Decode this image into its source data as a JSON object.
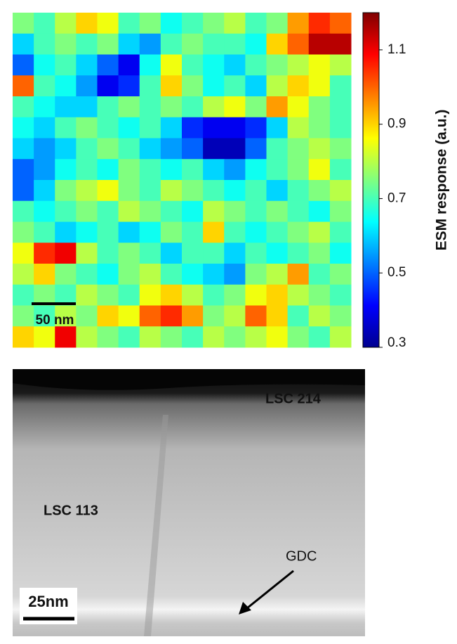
{
  "chart_data": {
    "type": "heatmap",
    "colorbar_label": "ESM  response (a.u.)",
    "scale_bar": "50 nm",
    "clim": [
      0.3,
      1.2
    ],
    "cticks": [
      0.3,
      0.5,
      0.7,
      0.9,
      1.1
    ],
    "colormap": "jet",
    "z": [
      [
        0.75,
        0.7,
        0.8,
        0.9,
        0.85,
        0.7,
        0.75,
        0.65,
        0.7,
        0.75,
        0.8,
        0.7,
        0.75,
        0.95,
        1.05,
        1.0
      ],
      [
        0.6,
        0.7,
        0.75,
        0.7,
        0.75,
        0.6,
        0.55,
        0.7,
        0.75,
        0.7,
        0.7,
        0.65,
        0.9,
        1.0,
        1.15,
        1.15
      ],
      [
        0.5,
        0.65,
        0.7,
        0.6,
        0.5,
        0.4,
        0.65,
        0.85,
        0.7,
        0.65,
        0.6,
        0.7,
        0.75,
        0.8,
        0.85,
        0.8
      ],
      [
        1.0,
        0.7,
        0.65,
        0.55,
        0.4,
        0.45,
        0.7,
        0.9,
        0.75,
        0.65,
        0.7,
        0.6,
        0.8,
        0.9,
        0.85,
        0.7
      ],
      [
        0.7,
        0.65,
        0.6,
        0.6,
        0.7,
        0.75,
        0.7,
        0.75,
        0.7,
        0.8,
        0.85,
        0.75,
        0.95,
        0.85,
        0.75,
        0.7
      ],
      [
        0.65,
        0.6,
        0.7,
        0.75,
        0.7,
        0.65,
        0.7,
        0.6,
        0.45,
        0.4,
        0.4,
        0.45,
        0.6,
        0.8,
        0.75,
        0.7
      ],
      [
        0.6,
        0.55,
        0.6,
        0.7,
        0.75,
        0.7,
        0.6,
        0.55,
        0.5,
        0.35,
        0.35,
        0.5,
        0.7,
        0.75,
        0.8,
        0.75
      ],
      [
        0.5,
        0.55,
        0.65,
        0.7,
        0.65,
        0.75,
        0.7,
        0.65,
        0.7,
        0.6,
        0.55,
        0.65,
        0.7,
        0.75,
        0.85,
        0.7
      ],
      [
        0.5,
        0.6,
        0.75,
        0.8,
        0.85,
        0.75,
        0.7,
        0.8,
        0.75,
        0.7,
        0.65,
        0.7,
        0.6,
        0.7,
        0.75,
        0.8
      ],
      [
        0.7,
        0.65,
        0.7,
        0.75,
        0.7,
        0.8,
        0.75,
        0.7,
        0.65,
        0.8,
        0.75,
        0.7,
        0.75,
        0.7,
        0.65,
        0.75
      ],
      [
        0.75,
        0.7,
        0.6,
        0.65,
        0.7,
        0.6,
        0.65,
        0.75,
        0.7,
        0.9,
        0.7,
        0.65,
        0.7,
        0.75,
        0.8,
        0.7
      ],
      [
        0.85,
        1.05,
        1.1,
        0.8,
        0.7,
        0.75,
        0.7,
        0.6,
        0.7,
        0.7,
        0.6,
        0.7,
        0.65,
        0.7,
        0.75,
        0.65
      ],
      [
        0.8,
        0.9,
        0.75,
        0.7,
        0.65,
        0.75,
        0.8,
        0.7,
        0.65,
        0.6,
        0.55,
        0.75,
        0.8,
        0.95,
        0.7,
        0.75
      ],
      [
        0.7,
        0.75,
        0.7,
        0.8,
        0.75,
        0.7,
        0.85,
        0.9,
        0.8,
        0.7,
        0.75,
        0.85,
        0.9,
        0.8,
        0.75,
        0.7
      ],
      [
        0.75,
        0.7,
        0.8,
        0.75,
        0.9,
        0.85,
        1.0,
        1.05,
        0.95,
        0.75,
        0.8,
        1.0,
        0.9,
        0.7,
        0.8,
        0.75
      ],
      [
        0.9,
        0.85,
        1.1,
        0.8,
        0.75,
        0.7,
        0.8,
        0.75,
        0.7,
        0.8,
        0.75,
        0.8,
        0.85,
        0.75,
        0.7,
        0.8
      ]
    ]
  },
  "tem": {
    "labels": [
      "LSC 214",
      "LSC 113",
      "GDC"
    ],
    "scale_bar": "25nm"
  }
}
